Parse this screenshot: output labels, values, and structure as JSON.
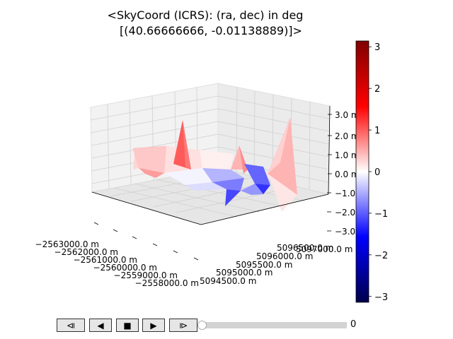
{
  "title_line1": "<SkyCoord (ICRS): (ra, dec) in deg",
  "title_line2": "[(40.66666666, -0.01138889)]>",
  "chart_data": {
    "type": "surface3d",
    "x_ticks": [
      "−2563000.0 m",
      "−2562000.0 m",
      "−2561000.0 m",
      "−2560000.0 m",
      "−2559000.0 m",
      "−2558000.0 m"
    ],
    "y_ticks": [
      "5094500.0 m",
      "5095000.0 m",
      "5095500.0 m",
      "5096000.0 m",
      "5096500.0 m",
      "5097000.0 m"
    ],
    "z_ticks": [
      "−3.0 m",
      "−2.0 m",
      "−1.0 m",
      "0.0 m",
      "1.0 m",
      "2.0 m",
      "3.0 m"
    ],
    "colorbar_ticks": [
      "3",
      "2",
      "1",
      "0",
      "−1",
      "−2",
      "−3"
    ],
    "colorbar_range": [
      -3.14,
      3.14
    ],
    "colormap": "seismic",
    "grid": true
  },
  "controls": {
    "buttons": [
      {
        "name": "step-back-button",
        "label": "⧏"
      },
      {
        "name": "play-reverse-button",
        "label": "◀"
      },
      {
        "name": "stop-button",
        "label": "■"
      },
      {
        "name": "play-button",
        "label": "▶"
      },
      {
        "name": "step-forward-button",
        "label": "⧐"
      }
    ],
    "slider_value": "0"
  }
}
